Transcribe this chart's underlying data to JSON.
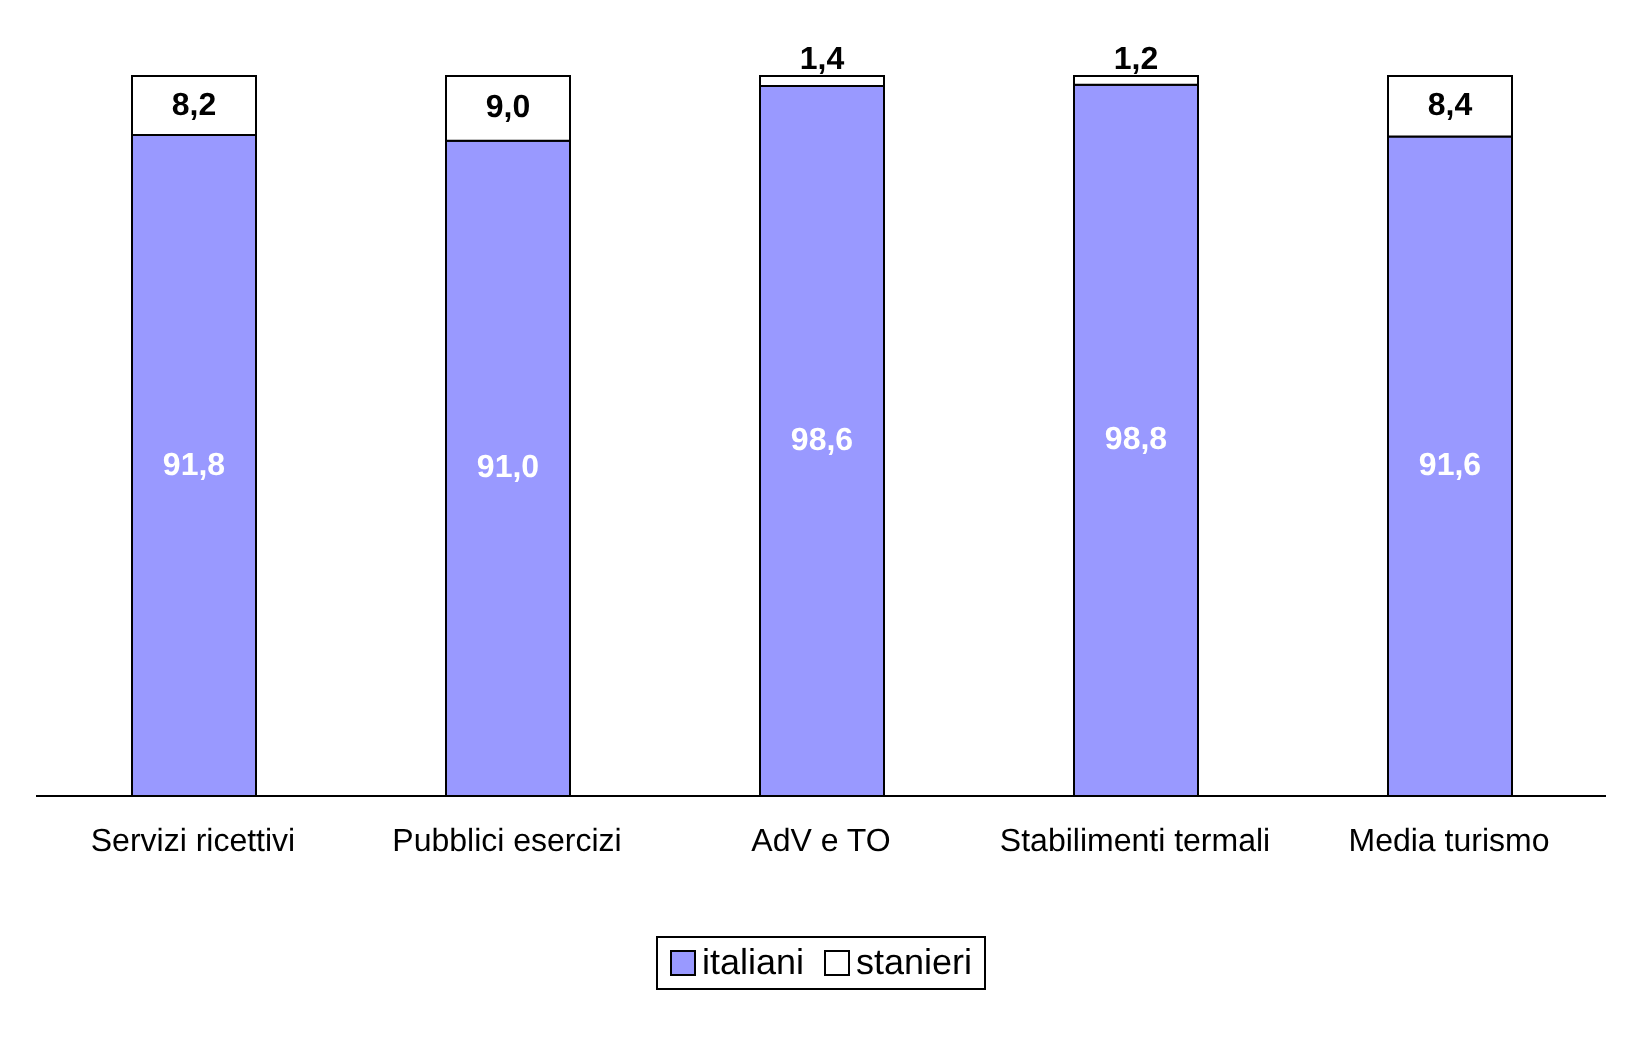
{
  "chart_data": {
    "type": "bar",
    "stacked": true,
    "categories": [
      "Servizi ricettivi",
      "Pubblici esercizi",
      "AdV e TO",
      "Stabilimenti termali",
      "Media turismo"
    ],
    "series": [
      {
        "name": "italiani",
        "color": "#9999ff",
        "values": [
          91.8,
          91.0,
          98.6,
          98.8,
          91.6
        ],
        "value_labels": [
          "91,8",
          "91,0",
          "98,6",
          "98,8",
          "91,6"
        ]
      },
      {
        "name": "stanieri",
        "color": "#ffffff",
        "values": [
          8.2,
          9.0,
          1.4,
          1.2,
          8.4
        ],
        "value_labels": [
          "8,2",
          "9,0",
          "1,4",
          "1,2",
          "8,4"
        ]
      }
    ],
    "legend": "bottom",
    "grid": false
  }
}
